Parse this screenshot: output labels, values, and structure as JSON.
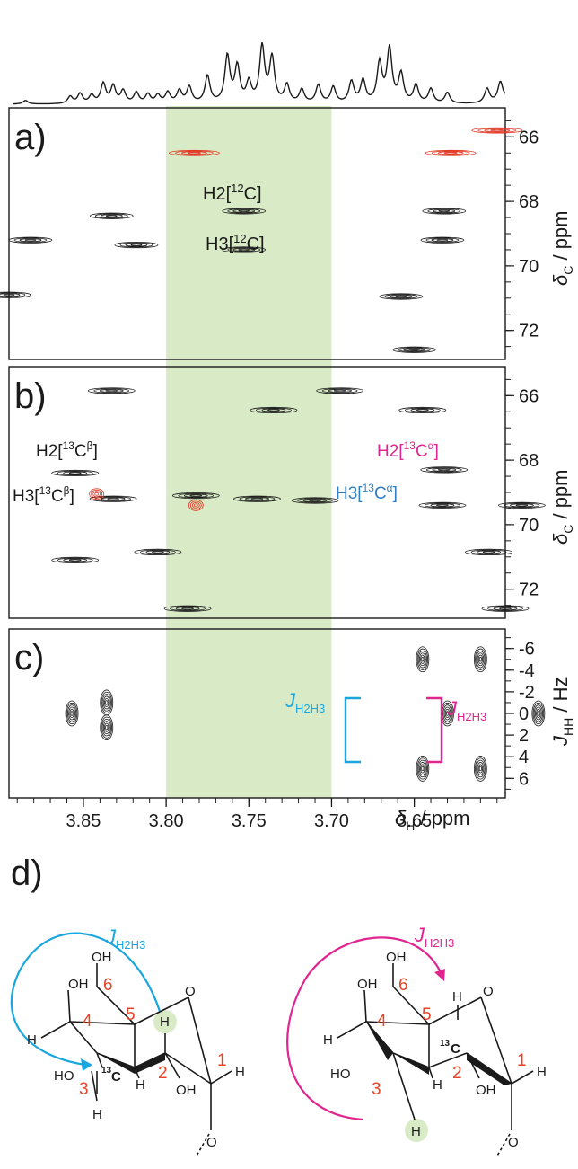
{
  "colors": {
    "black": "#1a1a1a",
    "red_contour": "#e0341f",
    "cyan": "#1aa6df",
    "magenta": "#e0258f",
    "blue_label": "#2f7fc2",
    "green_band": "#d9ebc6",
    "ring_number": "#e8432a",
    "h_highlight": "#d9ebc6"
  },
  "panels": {
    "a": {
      "letter": "a)",
      "label_h2": "H2[",
      "label_h2_sup": "12",
      "label_h2_end": "C]",
      "label_h3": "H3[",
      "label_h3_sup": "12",
      "label_h3_end": "C]"
    },
    "b": {
      "letter": "b)",
      "label_h2b": "H2[",
      "label_h2b_sup": "13",
      "label_h2b_mid": "C",
      "label_h2b_sup2": "β",
      "label_h2b_end": "]",
      "label_h3b": "H3[",
      "label_h3b_sup": "13",
      "label_h3b_mid": "C",
      "label_h3b_sup2": "β",
      "label_h3b_end": "]",
      "label_h2a": "H2[",
      "label_h2a_sup": "13",
      "label_h2a_mid": "C",
      "label_h2a_sup2": "α",
      "label_h2a_end": "]",
      "label_h3a": "H3[",
      "label_h3a_sup": "13",
      "label_h3a_mid": "C",
      "label_h3a_sup2": "α",
      "label_h3a_end": "]"
    },
    "c": {
      "letter": "c)",
      "j_main": "J",
      "j_sub": "H2H3"
    },
    "d": {
      "letter": "d)"
    }
  },
  "axes": {
    "x_label_delta": "δ",
    "x_label_sub": "H",
    "x_label_unit": " / ppm",
    "x_ticks": [
      "3.85",
      "3.80",
      "3.75",
      "3.70",
      "3.65"
    ],
    "y_ab_label_delta": "δ",
    "y_ab_label_sub": "C",
    "y_ab_label_unit": " / ppm",
    "y_ab_ticks": [
      "66",
      "68",
      "70",
      "72"
    ],
    "y_c_label_main": "J",
    "y_c_label_sub": "HH",
    "y_c_label_unit": " / Hz",
    "y_c_ticks": [
      "-6",
      "-4",
      "-2",
      "0",
      "2",
      "4",
      "6"
    ]
  },
  "chart_data": {
    "type": "scatter",
    "x_range": [
      3.895,
      3.595
    ],
    "x_ticks": [
      3.85,
      3.8,
      3.75,
      3.7,
      3.65
    ],
    "highlight_band_ppm": [
      3.8,
      3.7
    ],
    "panel_a": {
      "ylim": [
        65.1,
        72.9
      ],
      "black_peaks": [
        {
          "x": 3.833,
          "y": 68.45
        },
        {
          "x": 3.882,
          "y": 69.2
        },
        {
          "x": 3.818,
          "y": 69.35
        },
        {
          "x": 3.753,
          "y": 68.3
        },
        {
          "x": 3.753,
          "y": 69.5
        },
        {
          "x": 3.895,
          "y": 70.9
        },
        {
          "x": 3.658,
          "y": 70.95
        },
        {
          "x": 3.632,
          "y": 68.3
        },
        {
          "x": 3.633,
          "y": 69.2
        },
        {
          "x": 3.65,
          "y": 72.6
        }
      ],
      "red_peaks": [
        {
          "x": 3.783,
          "y": 66.5
        },
        {
          "x": 3.628,
          "y": 66.5
        },
        {
          "x": 3.6,
          "y": 65.8
        }
      ]
    },
    "panel_b": {
      "ylim": [
        65.1,
        72.9
      ],
      "black_peaks": [
        {
          "x": 3.833,
          "y": 65.85
        },
        {
          "x": 3.735,
          "y": 66.45
        },
        {
          "x": 3.695,
          "y": 65.85
        },
        {
          "x": 3.645,
          "y": 66.45
        },
        {
          "x": 3.855,
          "y": 68.4
        },
        {
          "x": 3.832,
          "y": 69.2
        },
        {
          "x": 3.855,
          "y": 71.1
        },
        {
          "x": 3.782,
          "y": 69.1
        },
        {
          "x": 3.745,
          "y": 69.2
        },
        {
          "x": 3.71,
          "y": 69.25
        },
        {
          "x": 3.805,
          "y": 70.85
        },
        {
          "x": 3.787,
          "y": 72.6
        },
        {
          "x": 3.632,
          "y": 68.3
        },
        {
          "x": 3.633,
          "y": 69.4
        },
        {
          "x": 3.605,
          "y": 70.85
        },
        {
          "x": 3.585,
          "y": 69.4
        },
        {
          "x": 3.595,
          "y": 72.6
        }
      ],
      "red_peaks": [
        {
          "x": 3.782,
          "y": 69.4
        },
        {
          "x": 3.842,
          "y": 69.05
        }
      ]
    },
    "panel_c": {
      "ylim": [
        -7.8,
        7.8
      ],
      "peaks": [
        {
          "x": 3.857,
          "y": 0
        },
        {
          "x": 3.836,
          "y": -1
        },
        {
          "x": 3.836,
          "y": 1.3
        },
        {
          "x": 3.645,
          "y": -5
        },
        {
          "x": 3.645,
          "y": 5.1
        },
        {
          "x": 3.63,
          "y": 0
        },
        {
          "x": 3.61,
          "y": -5
        },
        {
          "x": 3.61,
          "y": 5.1
        },
        {
          "x": 3.575,
          "y": 0
        }
      ]
    }
  },
  "structure": {
    "left": {
      "oh_top": "OH",
      "oh_top2": "OH",
      "oh_left": "HO",
      "oh_bottom": "OH",
      "h_left": "H",
      "h_bottom_left": "H",
      "h_ring": "H",
      "h_highlight": "H",
      "h_right": "H",
      "o_ring": "O",
      "o_glyc": "O",
      "c13": "13",
      "c_label": "C",
      "n1": "1",
      "n2": "2",
      "n3": "3",
      "n4": "4",
      "n5": "5",
      "n6": "6"
    },
    "right": {
      "oh_top": "OH",
      "oh_top2": "OH",
      "oh_left": "HO",
      "oh_bottom": "OH",
      "h_left": "H",
      "h_highlight": "H",
      "h_ring": "H",
      "h_c5": "H",
      "h_right": "H",
      "o_ring": "O",
      "o_glyc": "O",
      "c13": "13",
      "c_label": "C",
      "n1": "1",
      "n2": "2",
      "n3": "3",
      "n4": "4",
      "n5": "5",
      "n6": "6"
    }
  }
}
